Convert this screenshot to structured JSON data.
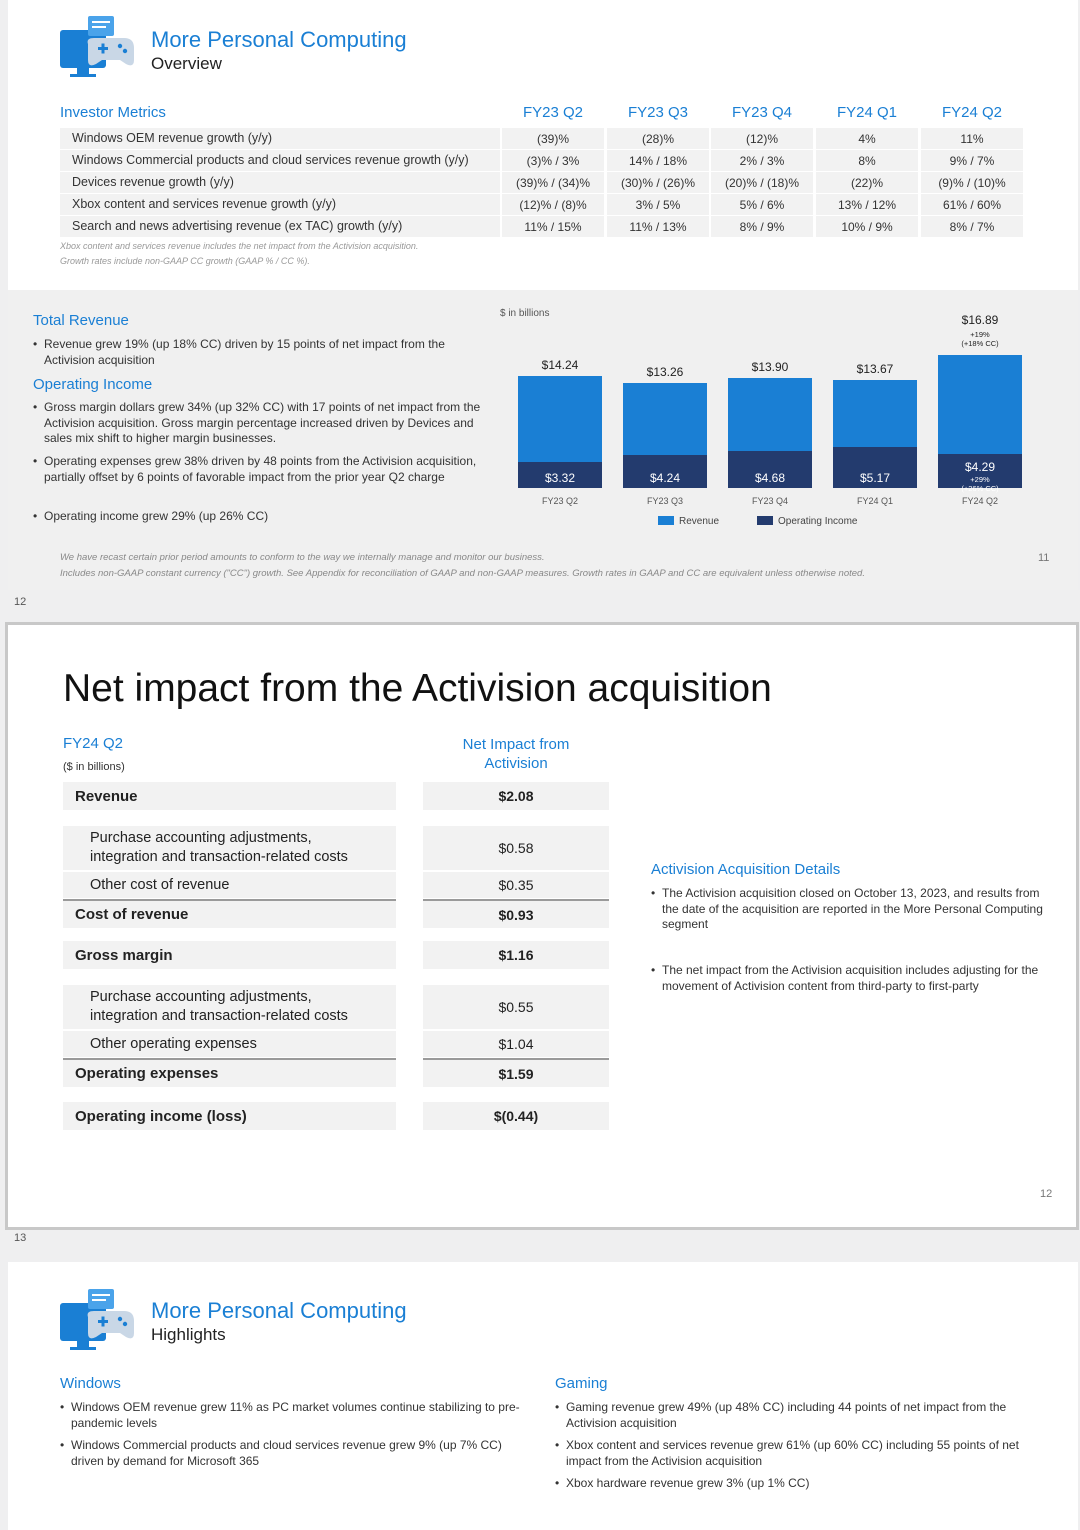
{
  "slide11": {
    "title": "More Personal Computing",
    "subtitle": "Overview",
    "metrics": {
      "header_label": "Investor Metrics",
      "quarters": [
        "FY23 Q2",
        "FY23 Q3",
        "FY23 Q4",
        "FY24 Q1",
        "FY24 Q2"
      ],
      "rows": [
        {
          "label": "Windows OEM revenue growth (y/y)",
          "values": [
            "(39)%",
            "(28)%",
            "(12)%",
            "4%",
            "11%"
          ]
        },
        {
          "label": "Windows Commercial products and cloud services revenue growth (y/y)",
          "values": [
            "(3)% / 3%",
            "14% / 18%",
            "2% / 3%",
            "8%",
            "9% / 7%"
          ]
        },
        {
          "label": "Devices revenue growth (y/y)",
          "values": [
            "(39)% / (34)%",
            "(30)% / (26)%",
            "(20)% / (18)%",
            "(22)%",
            "(9)% / (10)%"
          ]
        },
        {
          "label": "Xbox content and services revenue growth (y/y)",
          "values": [
            "(12)% / (8)%",
            "3% / 5%",
            "5% / 6%",
            "13% / 12%",
            "61% / 60%"
          ]
        },
        {
          "label": "Search and news advertising revenue (ex TAC) growth (y/y)",
          "values": [
            "11% / 15%",
            "11% / 13%",
            "8% / 9%",
            "10% / 9%",
            "8% / 7%"
          ]
        }
      ],
      "note1": "Xbox content and services revenue includes the net impact from the Activision acquisition.",
      "note2": "Growth rates include non-GAAP CC growth (GAAP % / CC %)."
    },
    "total_revenue": {
      "title": "Total Revenue",
      "bullets": [
        "Revenue grew 19% (up 18% CC) driven by 15 points of net impact from the Activision acquisition"
      ]
    },
    "operating_income": {
      "title": "Operating Income",
      "bullets": [
        "Gross margin dollars grew 34% (up 32% CC) with 17 points of net impact from the Activision acquisition. Gross margin percentage increased driven by Devices and sales mix shift to higher margin businesses.",
        "Operating expenses grew 38% driven by 48 points from the Activision acquisition, partially offset by 6 points of favorable impact from the prior year Q2 charge",
        "Operating income grew 29% (up 26% CC)"
      ]
    },
    "footnote1": "We have recast certain prior period amounts to conform to the way we internally manage and monitor our business.",
    "footnote2": "Includes non-GAAP constant currency (\"CC\") growth. See Appendix for reconciliation of GAAP and non-GAAP measures. Growth rates in GAAP and CC are equivalent unless otherwise noted.",
    "page_number": "11",
    "slide_index": "12"
  },
  "chart_data": {
    "type": "bar",
    "title": "",
    "unit_label": "$ in billions",
    "categories": [
      "FY23 Q2",
      "FY23 Q3",
      "FY23 Q4",
      "FY24 Q1",
      "FY24 Q2"
    ],
    "series": [
      {
        "name": "Revenue",
        "values": [
          14.24,
          13.26,
          13.9,
          13.67,
          16.89
        ],
        "labels": [
          "$14.24",
          "$13.26",
          "$13.90",
          "$13.67",
          "$16.89"
        ],
        "color": "#1a7fd4"
      },
      {
        "name": "Operating Income",
        "values": [
          3.32,
          4.24,
          4.68,
          5.17,
          4.29
        ],
        "labels": [
          "$3.32",
          "$4.24",
          "$4.68",
          "$5.17",
          "$4.29"
        ],
        "color": "#233b6e"
      }
    ],
    "annotations": {
      "revenue_growth": "+19%",
      "revenue_growth_cc": "(+18% CC)",
      "oi_growth": "+29%",
      "oi_growth_cc": "(+26% CC)"
    },
    "ylim": [
      0,
      18
    ],
    "legend": "bottom"
  },
  "slide12": {
    "title": "Net impact from the Activision acquisition",
    "period": "FY24 Q2",
    "unit": "($ in billions)",
    "col_header_line1": "Net Impact from",
    "col_header_line2": "Activision",
    "rows": {
      "revenue": {
        "label": "Revenue",
        "value": "$2.08"
      },
      "pa1": {
        "label1": "Purchase accounting adjustments,",
        "label2": "integration and transaction-related costs",
        "value": "$0.58"
      },
      "other_cor": {
        "label": "Other cost of revenue",
        "value": "$0.35"
      },
      "cor": {
        "label": "Cost of revenue",
        "value": "$0.93"
      },
      "gm": {
        "label": "Gross margin",
        "value": "$1.16"
      },
      "pa2": {
        "label1": "Purchase accounting adjustments,",
        "label2": "integration and transaction-related costs",
        "value": "$0.55"
      },
      "other_opex": {
        "label": "Other operating expenses",
        "value": "$1.04"
      },
      "opex": {
        "label": "Operating expenses",
        "value": "$1.59"
      },
      "oi": {
        "label": "Operating income (loss)",
        "value": "$(0.44)"
      }
    },
    "details": {
      "title": "Activision Acquisition Details",
      "bullets": [
        "The Activision acquisition closed on October 13, 2023, and results from the date of the acquisition are reported in the More Personal Computing segment",
        "The net impact from the Activision acquisition includes adjusting for the movement of Activision content from third-party to first-party"
      ]
    },
    "page_number": "12",
    "slide_index": "13"
  },
  "slide13": {
    "title": "More Personal Computing",
    "subtitle": "Highlights",
    "windows": {
      "title": "Windows",
      "bullets": [
        "Windows OEM revenue grew 11% as PC market volumes continue stabilizing to pre-pandemic levels",
        "Windows Commercial products and cloud services revenue grew 9% (up 7% CC) driven by demand for Microsoft 365"
      ]
    },
    "gaming": {
      "title": "Gaming",
      "bullets": [
        "Gaming revenue grew 49% (up 48% CC) including 44 points of net impact from the Activision acquisition",
        "Xbox content and services revenue grew 61% (up 60% CC) including 55 points of net impact from the Activision acquisition",
        "Xbox hardware revenue grew 3% (up 1% CC)"
      ]
    }
  }
}
